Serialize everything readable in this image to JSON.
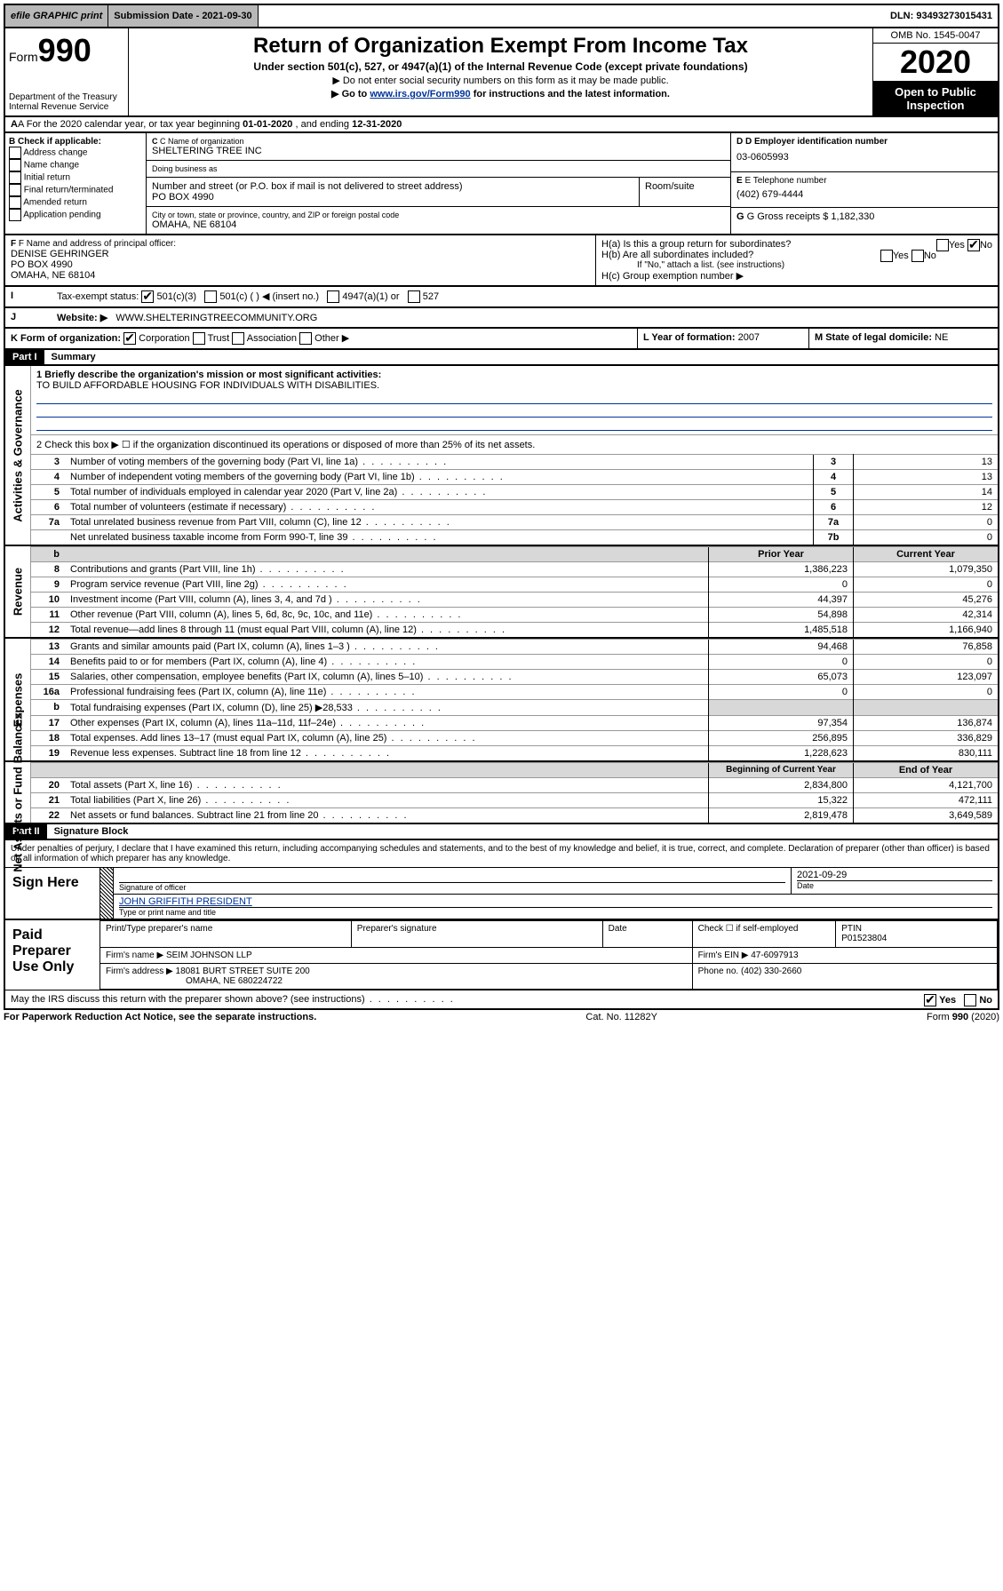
{
  "top": {
    "efile": "efile GRAPHIC print",
    "sub_date_label": "Submission Date - 2021-09-30",
    "dln": "DLN: 93493273015431"
  },
  "header": {
    "form_prefix": "Form",
    "form_num": "990",
    "dept1": "Department of the Treasury",
    "dept2": "Internal Revenue Service",
    "title": "Return of Organization Exempt From Income Tax",
    "subtitle": "Under section 501(c), 527, or 4947(a)(1) of the Internal Revenue Code (except private foundations)",
    "note1": "▶ Do not enter social security numbers on this form as it may be made public.",
    "note2_pre": "▶ Go to ",
    "note2_link": "www.irs.gov/Form990",
    "note2_post": " for instructions and the latest information.",
    "omb": "OMB No. 1545-0047",
    "year": "2020",
    "open": "Open to Public Inspection"
  },
  "A": {
    "text_pre": "A For the 2020 calendar year, or tax year beginning ",
    "begin": "01-01-2020",
    "text_mid": " , and ending ",
    "end": "12-31-2020"
  },
  "B": {
    "label": "B Check if applicable:",
    "opts": [
      "Address change",
      "Name change",
      "Initial return",
      "Final return/terminated",
      "Amended return",
      "Application pending"
    ]
  },
  "C": {
    "name_lbl": "C Name of organization",
    "name": "SHELTERING TREE INC",
    "dba_lbl": "Doing business as",
    "dba": "",
    "addr_lbl": "Number and street (or P.O. box if mail is not delivered to street address)",
    "room_lbl": "Room/suite",
    "addr": "PO BOX 4990",
    "city_lbl": "City or town, state or province, country, and ZIP or foreign postal code",
    "city": "OMAHA, NE  68104"
  },
  "D": {
    "lbl": "D Employer identification number",
    "val": "03-0605993"
  },
  "E": {
    "lbl": "E Telephone number",
    "val": "(402) 679-4444"
  },
  "G": {
    "lbl": "G Gross receipts $",
    "val": "1,182,330"
  },
  "F": {
    "lbl": "F Name and address of principal officer:",
    "name": "DENISE GEHRINGER",
    "addr1": "PO BOX 4990",
    "addr2": "OMAHA, NE  68104"
  },
  "H": {
    "a": "H(a)  Is this a group return for subordinates?",
    "b": "H(b)  Are all subordinates included?",
    "b_note": "If \"No,\" attach a list. (see instructions)",
    "c": "H(c)  Group exemption number ▶"
  },
  "I": {
    "lbl": "Tax-exempt status:",
    "opts": [
      "501(c)(3)",
      "501(c) (   ) ◀ (insert no.)",
      "4947(a)(1) or",
      "527"
    ]
  },
  "J": {
    "lbl": "Website: ▶",
    "val": "WWW.SHELTERINGTREECOMMUNITY.ORG"
  },
  "K": {
    "lbl": "K Form of organization:",
    "opts": [
      "Corporation",
      "Trust",
      "Association",
      "Other ▶"
    ]
  },
  "L": {
    "lbl": "L Year of formation:",
    "val": "2007"
  },
  "M": {
    "lbl": "M State of legal domicile:",
    "val": "NE"
  },
  "parts": {
    "p1": "Part I",
    "p1_title": "Summary",
    "p2": "Part II",
    "p2_title": "Signature Block"
  },
  "summary": {
    "line1_lbl": "1  Briefly describe the organization's mission or most significant activities:",
    "mission": "TO BUILD AFFORDABLE HOUSING FOR INDIVIDUALS WITH DISABILITIES.",
    "line2": "2   Check this box ▶ ☐  if the organization discontinued its operations or disposed of more than 25% of its net assets.",
    "lines_gov": [
      {
        "n": "3",
        "t": "Number of voting members of the governing body (Part VI, line 1a)",
        "box": "3",
        "v": "13"
      },
      {
        "n": "4",
        "t": "Number of independent voting members of the governing body (Part VI, line 1b)",
        "box": "4",
        "v": "13"
      },
      {
        "n": "5",
        "t": "Total number of individuals employed in calendar year 2020 (Part V, line 2a)",
        "box": "5",
        "v": "14"
      },
      {
        "n": "6",
        "t": "Total number of volunteers (estimate if necessary)",
        "box": "6",
        "v": "12"
      },
      {
        "n": "7a",
        "t": "Total unrelated business revenue from Part VIII, column (C), line 12",
        "box": "7a",
        "v": "0"
      },
      {
        "n": "",
        "t": "Net unrelated business taxable income from Form 990-T, line 39",
        "box": "7b",
        "v": "0"
      }
    ],
    "colhdr_prior": "Prior Year",
    "colhdr_curr": "Current Year",
    "rev": [
      {
        "n": "8",
        "t": "Contributions and grants (Part VIII, line 1h)",
        "p": "1,386,223",
        "c": "1,079,350"
      },
      {
        "n": "9",
        "t": "Program service revenue (Part VIII, line 2g)",
        "p": "0",
        "c": "0"
      },
      {
        "n": "10",
        "t": "Investment income (Part VIII, column (A), lines 3, 4, and 7d )",
        "p": "44,397",
        "c": "45,276"
      },
      {
        "n": "11",
        "t": "Other revenue (Part VIII, column (A), lines 5, 6d, 8c, 9c, 10c, and 11e)",
        "p": "54,898",
        "c": "42,314"
      },
      {
        "n": "12",
        "t": "Total revenue—add lines 8 through 11 (must equal Part VIII, column (A), line 12)",
        "p": "1,485,518",
        "c": "1,166,940"
      }
    ],
    "exp": [
      {
        "n": "13",
        "t": "Grants and similar amounts paid (Part IX, column (A), lines 1–3 )",
        "p": "94,468",
        "c": "76,858"
      },
      {
        "n": "14",
        "t": "Benefits paid to or for members (Part IX, column (A), line 4)",
        "p": "0",
        "c": "0"
      },
      {
        "n": "15",
        "t": "Salaries, other compensation, employee benefits (Part IX, column (A), lines 5–10)",
        "p": "65,073",
        "c": "123,097"
      },
      {
        "n": "16a",
        "t": "Professional fundraising fees (Part IX, column (A), line 11e)",
        "p": "0",
        "c": "0"
      },
      {
        "n": "b",
        "t": "Total fundraising expenses (Part IX, column (D), line 25) ▶28,533",
        "p": "",
        "c": "",
        "shade": true
      },
      {
        "n": "17",
        "t": "Other expenses (Part IX, column (A), lines 11a–11d, 11f–24e)",
        "p": "97,354",
        "c": "136,874"
      },
      {
        "n": "18",
        "t": "Total expenses. Add lines 13–17 (must equal Part IX, column (A), line 25)",
        "p": "256,895",
        "c": "336,829"
      },
      {
        "n": "19",
        "t": "Revenue less expenses. Subtract line 18 from line 12",
        "p": "1,228,623",
        "c": "830,111"
      }
    ],
    "colhdr_begin": "Beginning of Current Year",
    "colhdr_end": "End of Year",
    "net": [
      {
        "n": "20",
        "t": "Total assets (Part X, line 16)",
        "p": "2,834,800",
        "c": "4,121,700"
      },
      {
        "n": "21",
        "t": "Total liabilities (Part X, line 26)",
        "p": "15,322",
        "c": "472,111"
      },
      {
        "n": "22",
        "t": "Net assets or fund balances. Subtract line 21 from line 20",
        "p": "2,819,478",
        "c": "3,649,589"
      }
    ],
    "tabs": {
      "gov": "Activities & Governance",
      "rev": "Revenue",
      "exp": "Expenses",
      "net": "Net Assets or Fund Balances"
    }
  },
  "sig": {
    "perjury": "Under penalties of perjury, I declare that I have examined this return, including accompanying schedules and statements, and to the best of my knowledge and belief, it is true, correct, and complete. Declaration of preparer (other than officer) is based on all information of which preparer has any knowledge.",
    "sign_here": "Sign Here",
    "sig_officer": "Signature of officer",
    "sig_date": "2021-09-29",
    "date_lbl": "Date",
    "officer_name": "JOHN GRIFFITH PRESIDENT",
    "officer_lbl": "Type or print name and title",
    "paid": "Paid Preparer Use Only",
    "prep_name_lbl": "Print/Type preparer's name",
    "prep_sig_lbl": "Preparer's signature",
    "prep_date_lbl": "Date",
    "self_emp": "Check ☐ if self-employed",
    "ptin_lbl": "PTIN",
    "ptin": "P01523804",
    "firm_name_lbl": "Firm's name   ▶",
    "firm_name": "SEIM JOHNSON LLP",
    "firm_ein_lbl": "Firm's EIN ▶",
    "firm_ein": "47-6097913",
    "firm_addr_lbl": "Firm's address ▶",
    "firm_addr1": "18081 BURT STREET SUITE 200",
    "firm_addr2": "OMAHA, NE  680224722",
    "phone_lbl": "Phone no.",
    "phone": "(402) 330-2660",
    "discuss": "May the IRS discuss this return with the preparer shown above? (see instructions)",
    "yes": "Yes",
    "no": "No"
  },
  "footer": {
    "pra": "For Paperwork Reduction Act Notice, see the separate instructions.",
    "cat": "Cat. No. 11282Y",
    "form": "Form 990 (2020)"
  }
}
